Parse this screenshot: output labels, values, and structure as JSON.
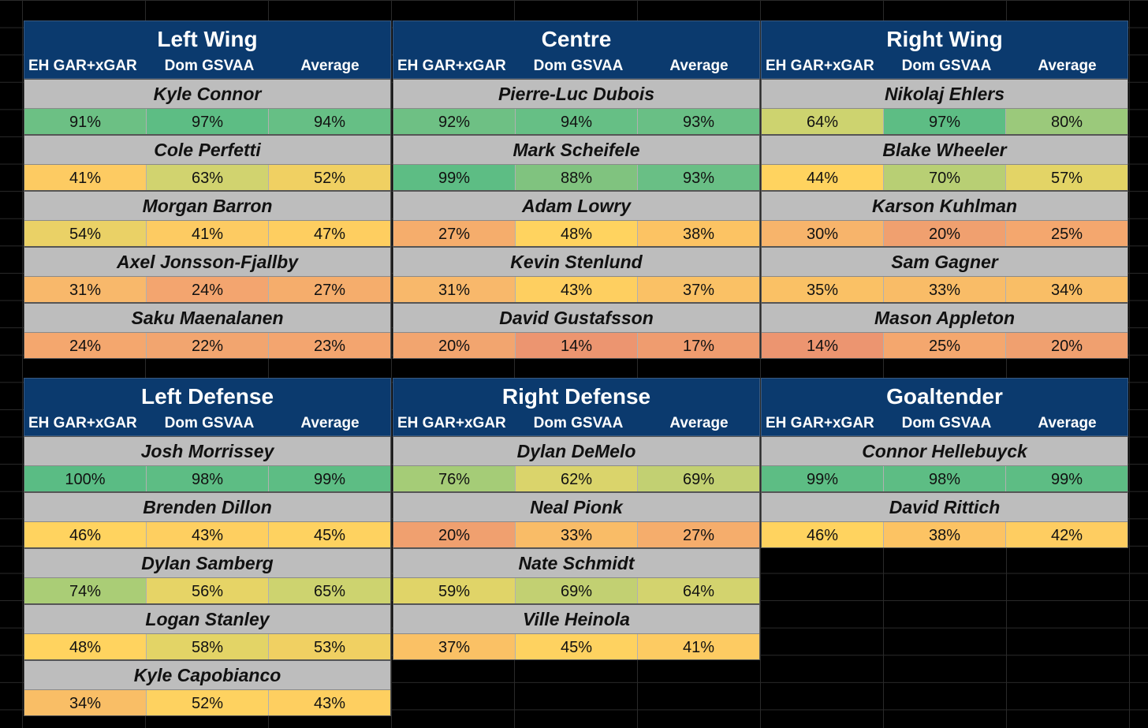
{
  "columns": [
    "EH GAR+xGAR",
    "Dom GSVAA",
    "Average"
  ],
  "positions": [
    {
      "title": "Left Wing",
      "players": [
        {
          "name": "Kyle Connor",
          "values": [
            "91%",
            "97%",
            "94%"
          ],
          "colors": [
            "#6cc084",
            "#5dbd84",
            "#66bf85"
          ]
        },
        {
          "name": "Cole Perfetti",
          "values": [
            "41%",
            "63%",
            "52%"
          ],
          "colors": [
            "#fdcb62",
            "#d1d36f",
            "#f0d062"
          ]
        },
        {
          "name": "Morgan Barron",
          "values": [
            "54%",
            "41%",
            "47%"
          ],
          "colors": [
            "#ead166",
            "#fdcb62",
            "#fece60"
          ]
        },
        {
          "name": "Axel Jonsson-Fjallby",
          "values": [
            "31%",
            "24%",
            "27%"
          ],
          "colors": [
            "#f8b86b",
            "#f3a56f",
            "#f5ad6c"
          ]
        },
        {
          "name": "Saku Maenalanen",
          "values": [
            "24%",
            "22%",
            "23%"
          ],
          "colors": [
            "#f4a76e",
            "#f2a56f",
            "#f3a56f"
          ]
        }
      ]
    },
    {
      "title": "Centre",
      "players": [
        {
          "name": "Pierre-Luc Dubois",
          "values": [
            "92%",
            "94%",
            "93%"
          ],
          "colors": [
            "#6ec084",
            "#66bf85",
            "#69bf85"
          ]
        },
        {
          "name": "Mark Scheifele",
          "values": [
            "99%",
            "88%",
            "93%"
          ],
          "colors": [
            "#5dbd84",
            "#80c37f",
            "#69bf85"
          ]
        },
        {
          "name": "Adam Lowry",
          "values": [
            "27%",
            "48%",
            "38%"
          ],
          "colors": [
            "#f5ad6c",
            "#ffd35f",
            "#fcc363"
          ]
        },
        {
          "name": "Kevin Stenlund",
          "values": [
            "31%",
            "43%",
            "37%"
          ],
          "colors": [
            "#f8b86b",
            "#fecf60",
            "#fac165"
          ]
        },
        {
          "name": "David Gustafsson",
          "values": [
            "20%",
            "14%",
            "17%"
          ],
          "colors": [
            "#f2a56f",
            "#ec9570",
            "#ef9c6f"
          ]
        }
      ]
    },
    {
      "title": "Right Wing",
      "players": [
        {
          "name": "Nikolaj Ehlers",
          "values": [
            "64%",
            "97%",
            "80%"
          ],
          "colors": [
            "#cdd36f",
            "#5dbd84",
            "#9bc97b"
          ]
        },
        {
          "name": "Blake Wheeler",
          "values": [
            "44%",
            "70%",
            "57%"
          ],
          "colors": [
            "#ffd35f",
            "#b8cf74",
            "#e3d466"
          ]
        },
        {
          "name": "Karson Kuhlman",
          "values": [
            "30%",
            "20%",
            "25%"
          ],
          "colors": [
            "#f7b46b",
            "#f0a06f",
            "#f4a76e"
          ]
        },
        {
          "name": "Sam Gagner",
          "values": [
            "35%",
            "33%",
            "34%"
          ],
          "colors": [
            "#fac165",
            "#f9bc67",
            "#f9be66"
          ]
        },
        {
          "name": "Mason Appleton",
          "values": [
            "14%",
            "25%",
            "20%"
          ],
          "colors": [
            "#ec9570",
            "#f4a76e",
            "#f0a06f"
          ]
        }
      ]
    },
    {
      "title": "Left Defense",
      "players": [
        {
          "name": "Josh Morrissey",
          "values": [
            "100%",
            "98%",
            "99%"
          ],
          "colors": [
            "#5abc84",
            "#5dbd84",
            "#5dbd84"
          ]
        },
        {
          "name": "Brenden Dillon",
          "values": [
            "46%",
            "43%",
            "45%"
          ],
          "colors": [
            "#ffd35f",
            "#fecf60",
            "#fed260"
          ]
        },
        {
          "name": "Dylan Samberg",
          "values": [
            "74%",
            "56%",
            "65%"
          ],
          "colors": [
            "#aacd76",
            "#e6d466",
            "#cdd36f"
          ]
        },
        {
          "name": "Logan Stanley",
          "values": [
            "48%",
            "58%",
            "53%"
          ],
          "colors": [
            "#ffd35f",
            "#e3d466",
            "#f0d062"
          ]
        },
        {
          "name": "Kyle Capobianco",
          "values": [
            "34%",
            "52%",
            "43%"
          ],
          "colors": [
            "#f9be66",
            "#fed260",
            "#fecf60"
          ]
        }
      ]
    },
    {
      "title": "Right Defense",
      "players": [
        {
          "name": "Dylan DeMelo",
          "values": [
            "76%",
            "62%",
            "69%"
          ],
          "colors": [
            "#a5cc77",
            "#dad46b",
            "#c2d072"
          ]
        },
        {
          "name": "Neal Pionk",
          "values": [
            "20%",
            "33%",
            "27%"
          ],
          "colors": [
            "#f0a06f",
            "#f9bc67",
            "#f5ad6c"
          ]
        },
        {
          "name": "Nate Schmidt",
          "values": [
            "59%",
            "69%",
            "64%"
          ],
          "colors": [
            "#e0d468",
            "#c2d072",
            "#d3d36e"
          ]
        },
        {
          "name": "Ville Heinola",
          "values": [
            "37%",
            "45%",
            "41%"
          ],
          "colors": [
            "#fac165",
            "#fed260",
            "#fdcb62"
          ]
        }
      ]
    },
    {
      "title": "Goaltender",
      "players": [
        {
          "name": "Connor Hellebuyck",
          "values": [
            "99%",
            "98%",
            "99%"
          ],
          "colors": [
            "#5dbd84",
            "#5dbd84",
            "#5dbd84"
          ]
        },
        {
          "name": "David Rittich",
          "values": [
            "46%",
            "38%",
            "42%"
          ],
          "colors": [
            "#ffd35f",
            "#fcc363",
            "#fecd61"
          ]
        }
      ]
    }
  ]
}
